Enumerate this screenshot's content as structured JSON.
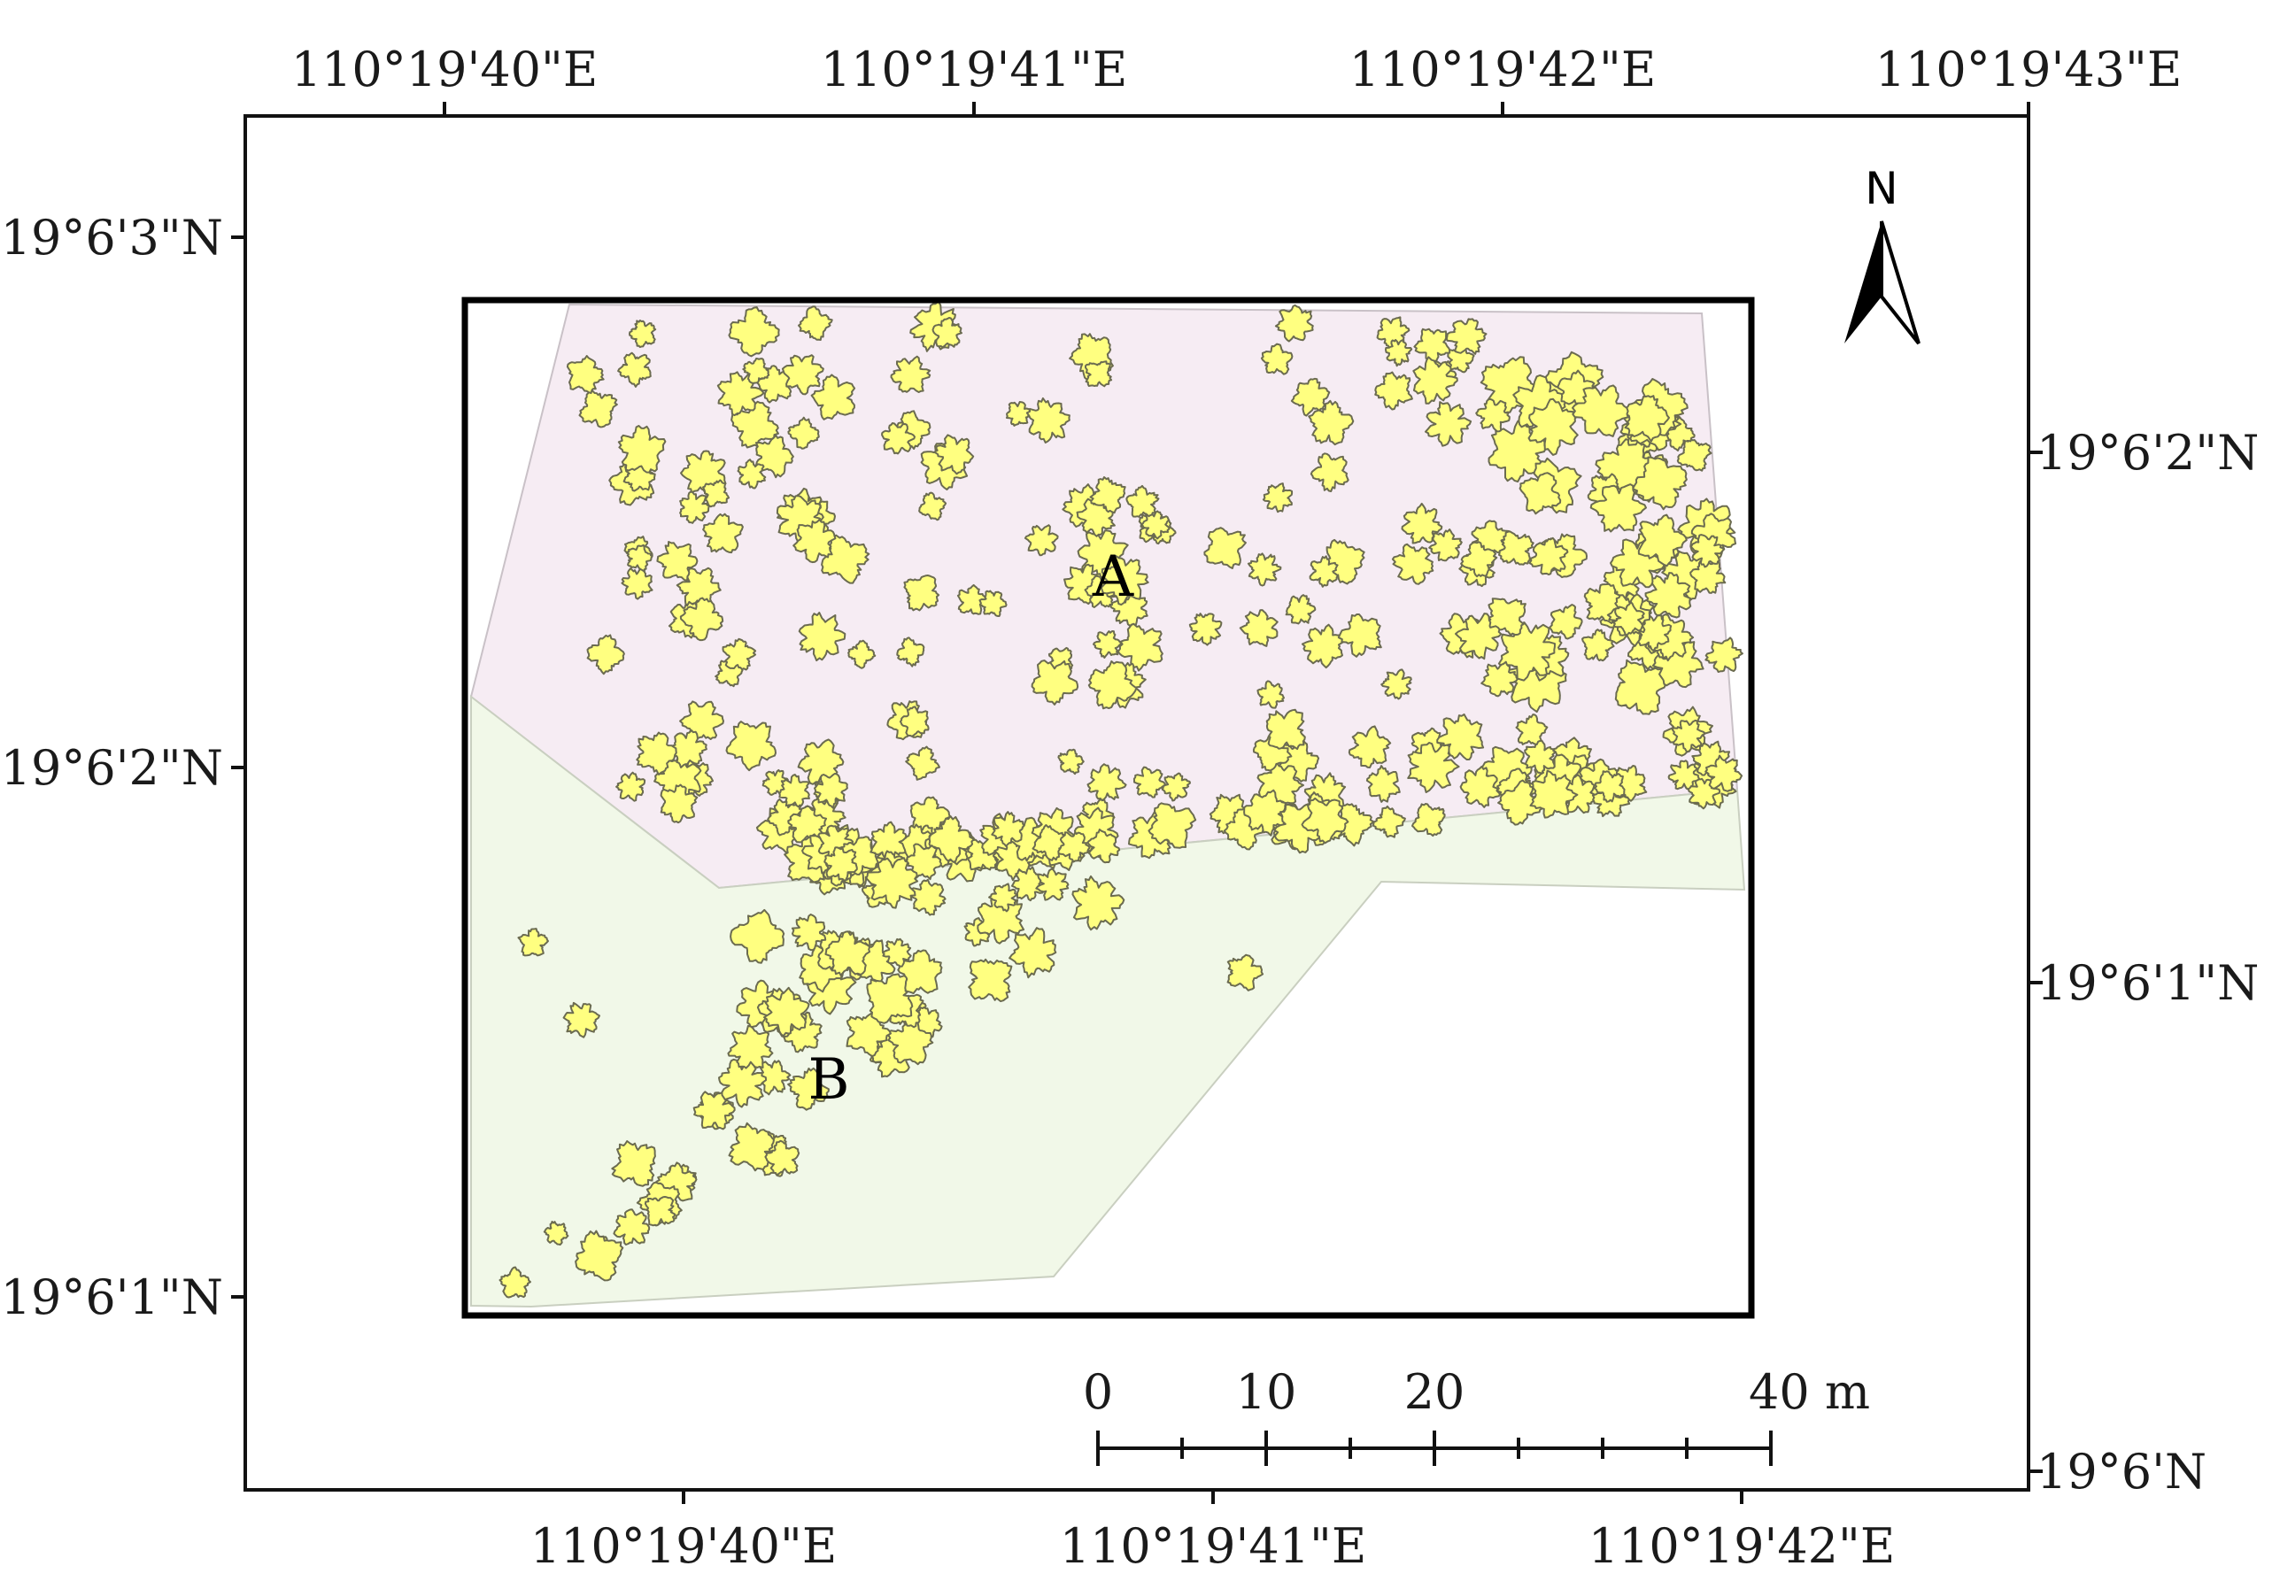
{
  "map": {
    "top_longitudes": [
      "110°19'40\"E",
      "110°19'41\"E",
      "110°19'42\"E",
      "110°19'43\"E"
    ],
    "bottom_longitudes": [
      "110°19'40\"E",
      "110°19'41\"E",
      "110°19'42\"E"
    ],
    "left_latitudes": [
      "19°6'3\"N",
      "19°6'2\"N",
      "19°6'1\"N"
    ],
    "right_latitudes": [
      "19°6'2\"N",
      "19°6'1\"N",
      "19°6'N"
    ],
    "zones": [
      {
        "label": "A",
        "color": "#f6ecf3"
      },
      {
        "label": "B",
        "color": "#f1f8e8"
      }
    ],
    "crown_color": "#ffff80",
    "crown_outline_color": "#6b6b50",
    "north_arrow": {
      "label": "N",
      "icon": "north-arrow-icon"
    },
    "scale_bar": {
      "tick_labels": [
        "0",
        "10",
        "20",
        "40 m"
      ],
      "tick_values": [
        0,
        10,
        20,
        40
      ],
      "unit": "m"
    }
  }
}
